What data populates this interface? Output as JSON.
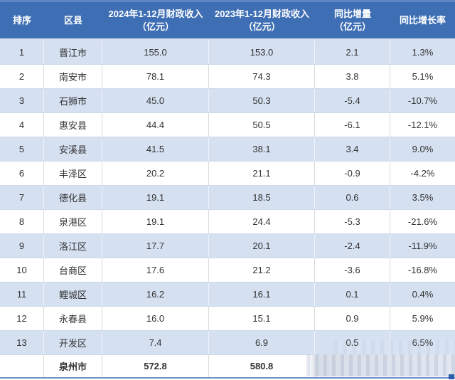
{
  "chart_data": {
    "type": "table",
    "title": "",
    "header": [
      {
        "line1": "排序",
        "line2": ""
      },
      {
        "line1": "区县",
        "line2": ""
      },
      {
        "line1": "2024年1-12月财政收入",
        "line2": "（亿元）"
      },
      {
        "line1": "2023年1-12月财政收入",
        "line2": "（亿元）"
      },
      {
        "line1": "同比增量",
        "line2": "（亿元）"
      },
      {
        "line1": "同比增长率",
        "line2": ""
      }
    ],
    "rows": [
      {
        "rank": "1",
        "district": "晋江市",
        "rev_2024": "155.0",
        "rev_2023": "153.0",
        "delta": "2.1",
        "growth": "1.3%"
      },
      {
        "rank": "2",
        "district": "南安市",
        "rev_2024": "78.1",
        "rev_2023": "74.3",
        "delta": "3.8",
        "growth": "5.1%"
      },
      {
        "rank": "3",
        "district": "石狮市",
        "rev_2024": "45.0",
        "rev_2023": "50.3",
        "delta": "-5.4",
        "growth": "-10.7%"
      },
      {
        "rank": "4",
        "district": "惠安县",
        "rev_2024": "44.4",
        "rev_2023": "50.5",
        "delta": "-6.1",
        "growth": "-12.1%"
      },
      {
        "rank": "5",
        "district": "安溪县",
        "rev_2024": "41.5",
        "rev_2023": "38.1",
        "delta": "3.4",
        "growth": "9.0%"
      },
      {
        "rank": "6",
        "district": "丰泽区",
        "rev_2024": "20.2",
        "rev_2023": "21.1",
        "delta": "-0.9",
        "growth": "-4.2%"
      },
      {
        "rank": "7",
        "district": "德化县",
        "rev_2024": "19.1",
        "rev_2023": "18.5",
        "delta": "0.6",
        "growth": "3.5%"
      },
      {
        "rank": "8",
        "district": "泉港区",
        "rev_2024": "19.1",
        "rev_2023": "24.4",
        "delta": "-5.3",
        "growth": "-21.6%"
      },
      {
        "rank": "9",
        "district": "洛江区",
        "rev_2024": "17.7",
        "rev_2023": "20.1",
        "delta": "-2.4",
        "growth": "-11.9%"
      },
      {
        "rank": "10",
        "district": "台商区",
        "rev_2024": "17.6",
        "rev_2023": "21.2",
        "delta": "-3.6",
        "growth": "-16.8%"
      },
      {
        "rank": "11",
        "district": "鲤城区",
        "rev_2024": "16.2",
        "rev_2023": "16.1",
        "delta": "0.1",
        "growth": "0.4%"
      },
      {
        "rank": "12",
        "district": "永春县",
        "rev_2024": "16.0",
        "rev_2023": "15.1",
        "delta": "0.9",
        "growth": "5.9%"
      },
      {
        "rank": "13",
        "district": "开发区",
        "rev_2024": "7.4",
        "rev_2023": "6.9",
        "delta": "0.5",
        "growth": "6.5%"
      }
    ],
    "total": {
      "rank": "",
      "district": "泉州市",
      "rev_2024": "572.8",
      "rev_2023": "580.8",
      "delta": "",
      "growth": ""
    },
    "layout": {
      "grid": true,
      "striped": true,
      "legend": "none"
    }
  },
  "colors": {
    "header_bg": "#3E6EB4",
    "header_text": "#FFFFFF",
    "alt_row_bg": "#D5E0F1",
    "plain_row_bg": "#FFFFFF",
    "body_text": "#333333",
    "grid_line": "#D9D9D9",
    "row_border": "#CDD9EC",
    "bottom_border": "#6E92C7",
    "censor_block": "#D7DDE8",
    "corner_mark": "#2B5EA9"
  }
}
